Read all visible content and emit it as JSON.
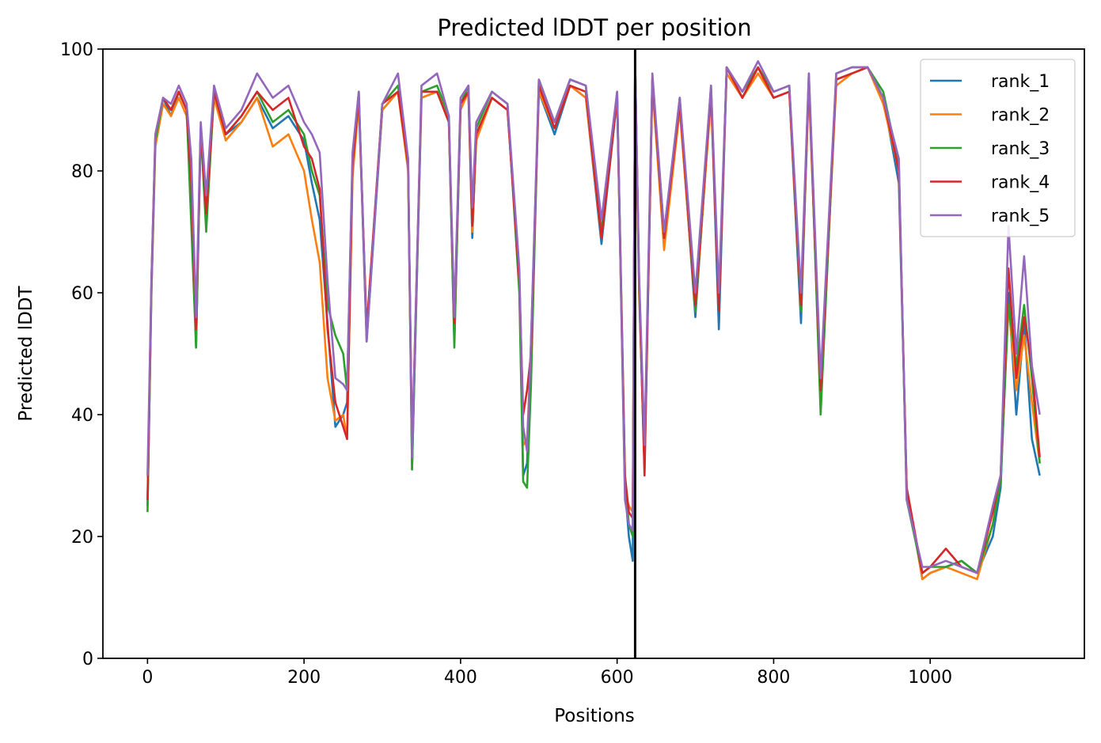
{
  "chart_data": {
    "type": "line",
    "title": "Predicted lDDT per position",
    "xlabel": "Positions",
    "ylabel": "Predicted lDDT",
    "xlim": [
      -57,
      1197
    ],
    "ylim": [
      0,
      100
    ],
    "xticks": [
      0,
      200,
      400,
      600,
      800,
      1000
    ],
    "yticks": [
      0,
      20,
      40,
      60,
      80,
      100
    ],
    "grid": false,
    "legend_position": "top-right",
    "vertical_line": 623,
    "series": [
      {
        "name": "rank_1",
        "color": "#1f77b4",
        "x": [
          0,
          5,
          10,
          20,
          30,
          40,
          50,
          56,
          62,
          68,
          75,
          85,
          100,
          120,
          140,
          160,
          180,
          200,
          210,
          220,
          230,
          240,
          250,
          255,
          262,
          270,
          280,
          300,
          320,
          333,
          338,
          350,
          370,
          385,
          392,
          400,
          410,
          415,
          420,
          440,
          460,
          475,
          480,
          485,
          490,
          500,
          520,
          540,
          560,
          580,
          600,
          610,
          615,
          620,
          623,
          628,
          635,
          645,
          660,
          680,
          700,
          720,
          730,
          740,
          760,
          780,
          800,
          820,
          835,
          845,
          860,
          880,
          900,
          920,
          940,
          960,
          970,
          990,
          1000,
          1020,
          1040,
          1060,
          1080,
          1090,
          1100,
          1110,
          1120,
          1130,
          1140
        ],
        "y": [
          25,
          60,
          85,
          92,
          89,
          93,
          90,
          77,
          51,
          87,
          72,
          93,
          86,
          88,
          92,
          87,
          89,
          85,
          78,
          72,
          55,
          38,
          40,
          42,
          80,
          92,
          52,
          90,
          93,
          82,
          31,
          92,
          93,
          88,
          52,
          91,
          93,
          69,
          86,
          92,
          90,
          62,
          30,
          32,
          52,
          93,
          86,
          94,
          92,
          68,
          92,
          28,
          20,
          16,
          98,
          62,
          33,
          95,
          70,
          91,
          56,
          93,
          54,
          97,
          92,
          97,
          92,
          93,
          55,
          95,
          42,
          95,
          96,
          97,
          92,
          78,
          28,
          13,
          14,
          15,
          16,
          14,
          20,
          28,
          60,
          40,
          55,
          36,
          30
        ]
      },
      {
        "name": "rank_2",
        "color": "#ff7f0e",
        "x": [
          0,
          5,
          10,
          20,
          30,
          40,
          50,
          56,
          62,
          68,
          75,
          85,
          100,
          120,
          140,
          160,
          180,
          200,
          210,
          220,
          230,
          240,
          250,
          255,
          262,
          270,
          280,
          300,
          320,
          333,
          338,
          350,
          370,
          385,
          392,
          400,
          410,
          415,
          420,
          440,
          460,
          475,
          480,
          485,
          490,
          500,
          520,
          540,
          560,
          580,
          600,
          610,
          615,
          620,
          623,
          628,
          635,
          645,
          660,
          680,
          700,
          720,
          730,
          740,
          760,
          780,
          800,
          820,
          835,
          845,
          860,
          880,
          900,
          920,
          940,
          960,
          970,
          990,
          1000,
          1020,
          1040,
          1060,
          1080,
          1090,
          1100,
          1110,
          1120,
          1130,
          1140
        ],
        "y": [
          26,
          60,
          84,
          91,
          89,
          92,
          89,
          78,
          53,
          86,
          73,
          92,
          85,
          88,
          92,
          84,
          86,
          80,
          72,
          65,
          46,
          39,
          40,
          36,
          79,
          91,
          54,
          90,
          93,
          80,
          33,
          92,
          93,
          88,
          54,
          90,
          93,
          70,
          85,
          92,
          90,
          63,
          35,
          36,
          50,
          93,
          87,
          94,
          92,
          69,
          92,
          27,
          25,
          24,
          97,
          60,
          33,
          94,
          67,
          90,
          57,
          92,
          58,
          96,
          92,
          96,
          92,
          93,
          57,
          94,
          43,
          94,
          96,
          97,
          91,
          80,
          28,
          13,
          14,
          15,
          14,
          13,
          22,
          30,
          58,
          44,
          53,
          42,
          32
        ]
      },
      {
        "name": "rank_3",
        "color": "#2ca02c",
        "x": [
          0,
          5,
          10,
          20,
          30,
          40,
          50,
          56,
          62,
          68,
          75,
          85,
          100,
          120,
          140,
          160,
          180,
          200,
          210,
          220,
          230,
          240,
          250,
          255,
          262,
          270,
          280,
          300,
          320,
          333,
          338,
          350,
          370,
          385,
          392,
          400,
          410,
          415,
          420,
          440,
          460,
          475,
          480,
          485,
          490,
          500,
          520,
          540,
          560,
          580,
          600,
          610,
          615,
          620,
          623,
          628,
          635,
          645,
          660,
          680,
          700,
          720,
          730,
          740,
          760,
          780,
          800,
          820,
          835,
          845,
          860,
          880,
          900,
          920,
          940,
          960,
          970,
          990,
          1000,
          1020,
          1040,
          1060,
          1080,
          1090,
          1100,
          1110,
          1120,
          1130,
          1140
        ],
        "y": [
          24,
          61,
          85,
          92,
          90,
          93,
          90,
          71,
          51,
          87,
          70,
          93,
          86,
          89,
          93,
          88,
          90,
          86,
          80,
          76,
          58,
          53,
          50,
          44,
          82,
          93,
          53,
          91,
          94,
          81,
          31,
          93,
          94,
          89,
          51,
          91,
          94,
          71,
          87,
          93,
          91,
          60,
          29,
          28,
          45,
          95,
          88,
          95,
          94,
          70,
          93,
          30,
          22,
          20,
          98,
          61,
          31,
          95,
          69,
          92,
          57,
          94,
          57,
          97,
          93,
          97,
          93,
          94,
          57,
          96,
          40,
          96,
          97,
          97,
          93,
          81,
          26,
          14,
          15,
          15,
          16,
          14,
          22,
          29,
          58,
          48,
          58,
          46,
          32
        ]
      },
      {
        "name": "rank_4",
        "color": "#d62728",
        "x": [
          0,
          5,
          10,
          20,
          30,
          40,
          50,
          56,
          62,
          68,
          75,
          85,
          100,
          120,
          140,
          160,
          180,
          200,
          210,
          220,
          230,
          240,
          250,
          255,
          262,
          270,
          280,
          300,
          320,
          333,
          338,
          350,
          370,
          385,
          392,
          400,
          410,
          415,
          420,
          440,
          460,
          475,
          480,
          485,
          490,
          500,
          520,
          540,
          560,
          580,
          600,
          610,
          615,
          620,
          623,
          628,
          635,
          645,
          660,
          680,
          700,
          720,
          730,
          740,
          760,
          780,
          800,
          820,
          835,
          845,
          860,
          880,
          900,
          920,
          940,
          960,
          970,
          990,
          1000,
          1020,
          1040,
          1060,
          1080,
          1090,
          1100,
          1110,
          1120,
          1130,
          1140
        ],
        "y": [
          26,
          62,
          86,
          92,
          90,
          93,
          90,
          78,
          54,
          87,
          73,
          93,
          86,
          89,
          93,
          90,
          92,
          84,
          82,
          77,
          54,
          42,
          38,
          36,
          81,
          92,
          54,
          91,
          93,
          81,
          34,
          93,
          93,
          88,
          55,
          91,
          93,
          71,
          86,
          92,
          90,
          62,
          40,
          44,
          50,
          94,
          87,
          94,
          93,
          69,
          92,
          30,
          24,
          23,
          97,
          62,
          30,
          95,
          69,
          91,
          58,
          93,
          57,
          97,
          92,
          97,
          92,
          93,
          58,
          95,
          44,
          95,
          96,
          97,
          92,
          80,
          28,
          14,
          15,
          18,
          15,
          14,
          24,
          30,
          64,
          46,
          56,
          48,
          33
        ]
      },
      {
        "name": "rank_5",
        "color": "#9467bd",
        "x": [
          0,
          5,
          10,
          20,
          30,
          40,
          50,
          56,
          62,
          68,
          75,
          85,
          100,
          120,
          140,
          160,
          180,
          200,
          210,
          220,
          230,
          240,
          250,
          255,
          262,
          270,
          280,
          300,
          320,
          333,
          338,
          350,
          370,
          385,
          392,
          400,
          410,
          415,
          420,
          440,
          460,
          475,
          480,
          485,
          490,
          500,
          520,
          540,
          560,
          580,
          600,
          610,
          615,
          620,
          623,
          628,
          635,
          645,
          660,
          680,
          700,
          720,
          730,
          740,
          760,
          780,
          800,
          820,
          835,
          845,
          860,
          880,
          900,
          920,
          940,
          960,
          970,
          990,
          1000,
          1020,
          1040,
          1060,
          1080,
          1090,
          1100,
          1110,
          1120,
          1130,
          1140
        ],
        "y": [
          30,
          62,
          86,
          92,
          91,
          94,
          91,
          82,
          56,
          88,
          76,
          94,
          87,
          90,
          96,
          92,
          94,
          88,
          86,
          83,
          62,
          46,
          45,
          44,
          83,
          93,
          52,
          91,
          96,
          82,
          33,
          94,
          96,
          89,
          56,
          92,
          94,
          74,
          88,
          93,
          91,
          64,
          38,
          34,
          52,
          95,
          88,
          95,
          94,
          72,
          93,
          26,
          22,
          21,
          98,
          63,
          35,
          96,
          70,
          92,
          60,
          94,
          60,
          97,
          93,
          98,
          93,
          94,
          60,
          96,
          46,
          96,
          97,
          97,
          92,
          82,
          26,
          15,
          15,
          16,
          15,
          14,
          25,
          30,
          71,
          50,
          66,
          48,
          40
        ]
      }
    ]
  }
}
